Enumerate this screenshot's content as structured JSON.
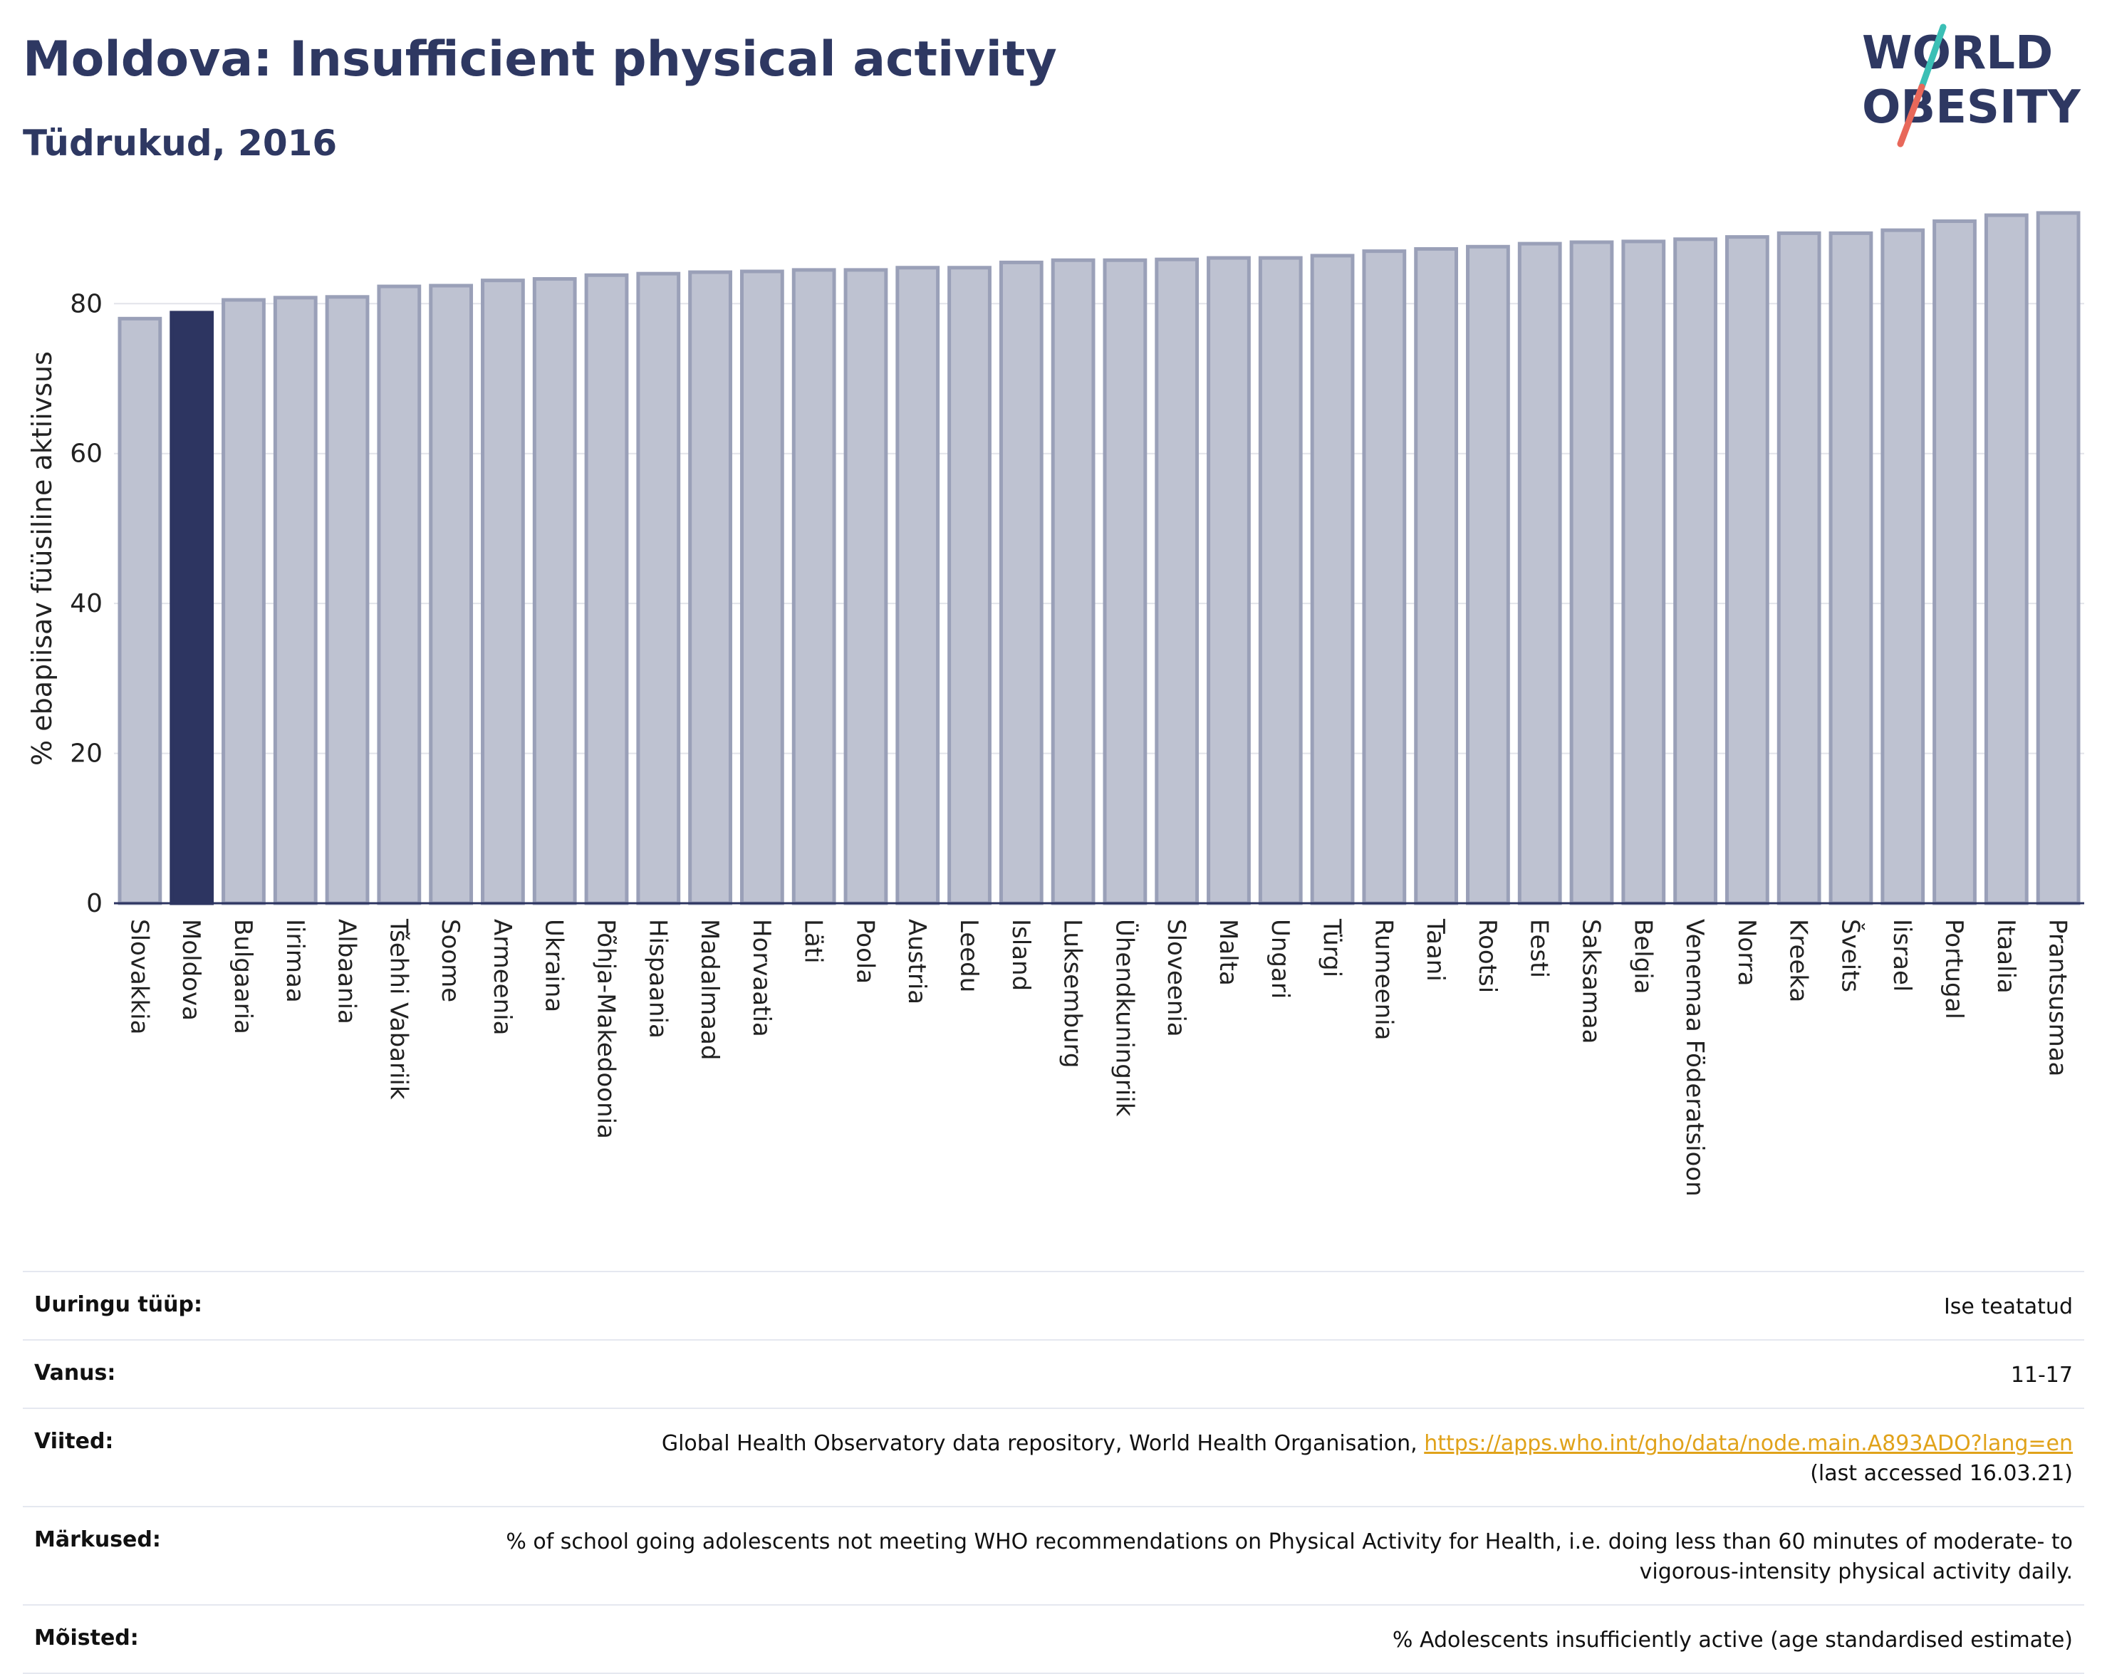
{
  "header": {
    "title": "Moldova: Insufficient physical activity",
    "subtitle": "Tüdrukud, 2016"
  },
  "logo": {
    "line1": "WORLD",
    "line2": "OBESITY"
  },
  "colors": {
    "highlight": "#2d3561",
    "bar": "#bec2d1",
    "bar_border": "#9aa0b8",
    "title": "#2e3862",
    "logo_slash_top": "#3bbfb5",
    "logo_slash_bottom": "#e8685a",
    "link": "#e0a21a"
  },
  "chart_data": {
    "type": "bar",
    "title": "Moldova: Insufficient physical activity",
    "subtitle": "Tüdrukud, 2016",
    "ylabel": "% ebapiisav füüsiline aktiivsus",
    "xlabel": "",
    "ylim": [
      0,
      92
    ],
    "yticks": [
      0,
      20,
      40,
      60,
      80
    ],
    "grid": true,
    "highlight": "Moldova",
    "categories": [
      "Slovakkia",
      "Moldova",
      "Bulgaaria",
      "Iirimaa",
      "Albaania",
      "Tšehhi Vabariik",
      "Soome",
      "Armeenia",
      "Ukraina",
      "Põhja-Makedoonia",
      "Hispaania",
      "Madalmaad",
      "Horvaatia",
      "Läti",
      "Poola",
      "Austria",
      "Leedu",
      "Island",
      "Luksemburg",
      "Ühendkuningriik",
      "Sloveenia",
      "Malta",
      "Ungari",
      "Türgi",
      "Rumeenia",
      "Taani",
      "Rootsi",
      "Eesti",
      "Saksamaa",
      "Belgia",
      "Venemaa Föderatsioon",
      "Norra",
      "Kreeka",
      "Šveits",
      "Iisrael",
      "Portugal",
      "Itaalia",
      "Prantsusmaa"
    ],
    "values": [
      78.0,
      78.8,
      80.5,
      80.8,
      80.9,
      82.3,
      82.4,
      83.1,
      83.3,
      83.8,
      84.0,
      84.2,
      84.3,
      84.5,
      84.5,
      84.8,
      84.8,
      85.5,
      85.8,
      85.8,
      85.9,
      86.1,
      86.1,
      86.4,
      87.0,
      87.3,
      87.6,
      88.0,
      88.2,
      88.3,
      88.6,
      88.9,
      89.4,
      89.4,
      89.8,
      91.0,
      91.8,
      92.1
    ]
  },
  "info": {
    "rows": [
      {
        "key": "Uuringu tüüp:",
        "value": "Ise teatatud"
      },
      {
        "key": "Vanus:",
        "value": "11-17"
      },
      {
        "key": "Viited:",
        "value": "Global Health Observatory data repository, World Health Organisation,",
        "link": "https://apps.who.int/gho/data/node.main.A893ADO?lang=en",
        "value2": "(last accessed 16.03.21)"
      },
      {
        "key": "Märkused:",
        "value": "% of school going adolescents not meeting WHO recommendations on Physical Activity for Health, i.e. doing less than 60 minutes of moderate- to vigorous-intensity physical activity daily."
      },
      {
        "key": "Mõisted:",
        "value": "% Adolescents insufficiently active (age standardised estimate)"
      }
    ]
  }
}
